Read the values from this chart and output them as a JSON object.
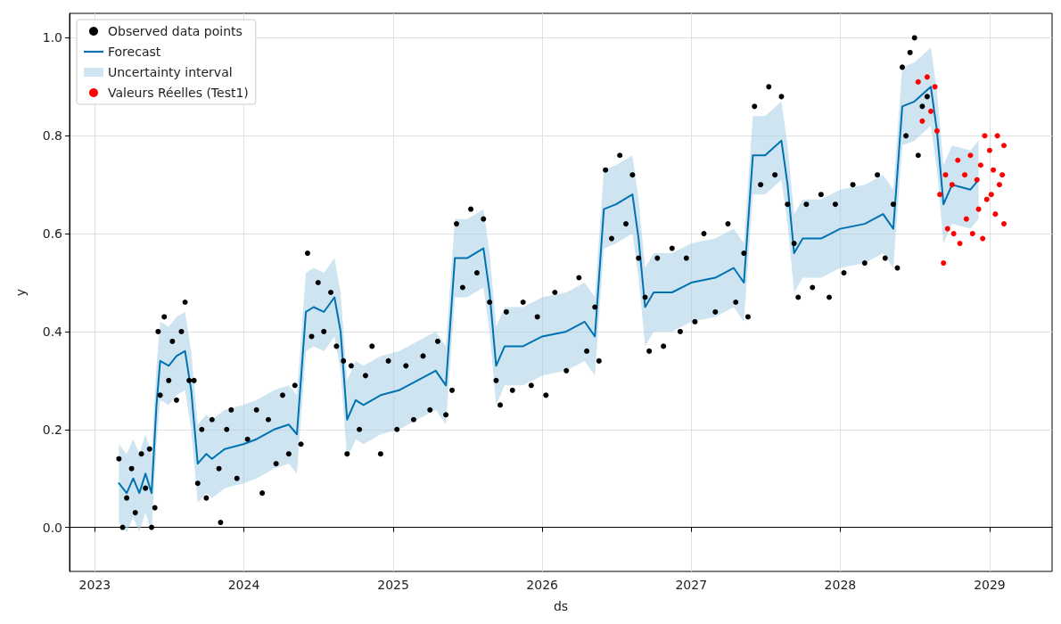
{
  "chart_data": {
    "type": "scatter",
    "xlabel": "ds",
    "ylabel": "y",
    "xlim": [
      "2022-10-31",
      "2029-06-03"
    ],
    "ylim": [
      -0.09,
      1.05
    ],
    "xticks": [
      "2023",
      "2024",
      "2025",
      "2026",
      "2027",
      "2028",
      "2029"
    ],
    "yticks": [
      {
        "value": 0,
        "label": "0.0"
      },
      {
        "value": 0.2,
        "label": "0.2"
      },
      {
        "value": 0.4,
        "label": "0.4"
      },
      {
        "value": 0.6,
        "label": "0.6"
      },
      {
        "value": 0.8,
        "label": "0.8"
      },
      {
        "value": 1,
        "label": "1.0"
      }
    ],
    "grid": true,
    "legend": "top left",
    "marker": "circle",
    "series": [
      {
        "name": "Observed data points",
        "type": "scatter",
        "color": "#000000",
        "x": [
          "2023-03-01",
          "2023-03-10",
          "2023-03-20",
          "2023-04-01",
          "2023-04-10",
          "2023-04-25",
          "2023-05-05",
          "2023-05-15",
          "2023-05-20",
          "2023-05-28",
          "2023-06-05",
          "2023-06-10",
          "2023-06-20",
          "2023-07-01",
          "2023-07-10",
          "2023-07-20",
          "2023-08-01",
          "2023-08-10",
          "2023-08-20",
          "2023-09-01",
          "2023-09-10",
          "2023-09-20",
          "2023-10-01",
          "2023-10-15",
          "2023-11-01",
          "2023-11-05",
          "2023-11-20",
          "2023-12-01",
          "2023-12-15",
          "2024-01-10",
          "2024-02-01",
          "2024-02-15",
          "2024-03-01",
          "2024-03-20",
          "2024-04-05",
          "2024-04-20",
          "2024-05-05",
          "2024-05-20",
          "2024-06-05",
          "2024-06-15",
          "2024-07-01",
          "2024-07-15",
          "2024-08-01",
          "2024-08-15",
          "2024-09-01",
          "2024-09-10",
          "2024-09-20",
          "2024-10-10",
          "2024-10-25",
          "2024-11-10",
          "2024-12-01",
          "2024-12-20",
          "2025-01-10",
          "2025-02-01",
          "2025-02-20",
          "2025-03-15",
          "2025-04-01",
          "2025-04-20",
          "2025-05-10",
          "2025-05-25",
          "2025-06-05",
          "2025-06-20",
          "2025-07-10",
          "2025-07-25",
          "2025-08-10",
          "2025-08-25",
          "2025-09-10",
          "2025-09-20",
          "2025-10-05",
          "2025-10-20",
          "2025-11-15",
          "2025-12-05",
          "2025-12-20",
          "2026-01-10",
          "2026-02-01",
          "2026-03-01",
          "2026-04-01",
          "2026-04-20",
          "2026-05-10",
          "2026-05-20",
          "2026-06-05",
          "2026-06-20",
          "2026-07-10",
          "2026-07-25",
          "2026-08-10",
          "2026-08-25",
          "2026-09-10",
          "2026-09-20",
          "2026-10-10",
          "2026-10-25",
          "2026-11-15",
          "2026-12-05",
          "2026-12-20",
          "2027-01-10",
          "2027-02-01",
          "2027-03-01",
          "2027-04-01",
          "2027-04-20",
          "2027-05-10",
          "2027-05-20",
          "2027-06-05",
          "2027-06-20",
          "2027-07-10",
          "2027-07-25",
          "2027-08-10",
          "2027-08-25",
          "2027-09-10",
          "2027-09-20",
          "2027-10-10",
          "2027-10-25",
          "2027-11-15",
          "2027-12-05",
          "2027-12-20",
          "2028-01-10",
          "2028-02-01",
          "2028-03-01",
          "2028-04-01",
          "2028-04-20",
          "2028-05-10",
          "2028-05-20",
          "2028-06-01",
          "2028-06-10",
          "2028-06-20",
          "2028-07-01",
          "2028-07-10",
          "2028-07-20",
          "2028-08-01"
        ],
        "values": [
          0.14,
          0.0,
          0.06,
          0.12,
          0.03,
          0.15,
          0.08,
          0.16,
          0.0,
          0.04,
          0.4,
          0.27,
          0.43,
          0.3,
          0.38,
          0.26,
          0.4,
          0.46,
          0.3,
          0.3,
          0.09,
          0.2,
          0.06,
          0.22,
          0.12,
          0.01,
          0.2,
          0.24,
          0.1,
          0.18,
          0.24,
          0.07,
          0.22,
          0.13,
          0.27,
          0.15,
          0.29,
          0.17,
          0.56,
          0.39,
          0.5,
          0.4,
          0.48,
          0.37,
          0.34,
          0.15,
          0.33,
          0.2,
          0.31,
          0.37,
          0.15,
          0.34,
          0.2,
          0.33,
          0.22,
          0.35,
          0.24,
          0.38,
          0.23,
          0.28,
          0.62,
          0.49,
          0.65,
          0.52,
          0.63,
          0.46,
          0.3,
          0.25,
          0.44,
          0.28,
          0.46,
          0.29,
          0.43,
          0.27,
          0.48,
          0.32,
          0.51,
          0.36,
          0.45,
          0.34,
          0.73,
          0.59,
          0.76,
          0.62,
          0.72,
          0.55,
          0.47,
          0.36,
          0.55,
          0.37,
          0.57,
          0.4,
          0.55,
          0.42,
          0.6,
          0.44,
          0.62,
          0.46,
          0.56,
          0.43,
          0.86,
          0.7,
          0.9,
          0.72,
          0.88,
          0.66,
          0.58,
          0.47,
          0.66,
          0.49,
          0.68,
          0.47,
          0.66,
          0.52,
          0.7,
          0.54,
          0.72,
          0.55,
          0.66,
          0.53,
          0.94,
          0.8,
          0.97,
          1.0,
          0.76,
          0.86,
          0.88
        ]
      },
      {
        "name": "Forecast",
        "type": "line",
        "color": "#0072b2",
        "marker": "none",
        "x": [
          "2023-03-01",
          "2023-03-20",
          "2023-04-05",
          "2023-04-20",
          "2023-05-05",
          "2023-05-20",
          "2023-06-01",
          "2023-06-10",
          "2023-07-01",
          "2023-07-20",
          "2023-08-10",
          "2023-08-25",
          "2023-09-10",
          "2023-10-01",
          "2023-10-15",
          "2023-11-15",
          "2023-12-31",
          "2024-02-01",
          "2024-03-15",
          "2024-04-20",
          "2024-05-10",
          "2024-06-01",
          "2024-06-20",
          "2024-07-15",
          "2024-08-10",
          "2024-08-25",
          "2024-09-10",
          "2024-10-01",
          "2024-10-20",
          "2024-12-01",
          "2025-01-15",
          "2025-03-01",
          "2025-04-15",
          "2025-05-10",
          "2025-06-01",
          "2025-07-01",
          "2025-08-10",
          "2025-08-25",
          "2025-09-10",
          "2025-10-01",
          "2025-11-15",
          "2026-01-01",
          "2026-03-01",
          "2026-04-15",
          "2026-05-10",
          "2026-06-01",
          "2026-07-01",
          "2026-08-10",
          "2026-08-25",
          "2026-09-10",
          "2026-10-01",
          "2026-11-15",
          "2027-01-01",
          "2027-03-01",
          "2027-04-15",
          "2027-05-10",
          "2027-06-01",
          "2027-07-01",
          "2027-08-10",
          "2027-08-25",
          "2027-09-10",
          "2027-10-01",
          "2027-11-15",
          "2028-01-01",
          "2028-03-01",
          "2028-04-15",
          "2028-05-10",
          "2028-06-01",
          "2028-07-01",
          "2028-08-10",
          "2028-08-25",
          "2028-09-10",
          "2028-10-01",
          "2028-11-15",
          "2028-12-05"
        ],
        "values": [
          0.09,
          0.07,
          0.1,
          0.07,
          0.11,
          0.07,
          0.25,
          0.34,
          0.33,
          0.35,
          0.36,
          0.28,
          0.13,
          0.15,
          0.14,
          0.16,
          0.17,
          0.18,
          0.2,
          0.21,
          0.19,
          0.44,
          0.45,
          0.44,
          0.47,
          0.4,
          0.22,
          0.26,
          0.25,
          0.27,
          0.28,
          0.3,
          0.32,
          0.29,
          0.55,
          0.55,
          0.57,
          0.48,
          0.33,
          0.37,
          0.37,
          0.39,
          0.4,
          0.42,
          0.39,
          0.65,
          0.66,
          0.68,
          0.59,
          0.45,
          0.48,
          0.48,
          0.5,
          0.51,
          0.53,
          0.5,
          0.76,
          0.76,
          0.79,
          0.7,
          0.56,
          0.59,
          0.59,
          0.61,
          0.62,
          0.64,
          0.61,
          0.86,
          0.87,
          0.9,
          0.81,
          0.66,
          0.7,
          0.69,
          0.71
        ],
        "lower": [
          0.01,
          -0.01,
          0.02,
          -0.01,
          0.03,
          -0.01,
          0.17,
          0.26,
          0.25,
          0.27,
          0.28,
          0.2,
          0.05,
          0.07,
          0.06,
          0.08,
          0.09,
          0.1,
          0.12,
          0.13,
          0.11,
          0.36,
          0.37,
          0.36,
          0.39,
          0.32,
          0.14,
          0.18,
          0.17,
          0.19,
          0.2,
          0.22,
          0.24,
          0.21,
          0.47,
          0.47,
          0.49,
          0.4,
          0.25,
          0.29,
          0.29,
          0.31,
          0.32,
          0.34,
          0.31,
          0.57,
          0.58,
          0.6,
          0.51,
          0.37,
          0.4,
          0.4,
          0.42,
          0.43,
          0.45,
          0.42,
          0.68,
          0.68,
          0.71,
          0.62,
          0.48,
          0.51,
          0.51,
          0.53,
          0.54,
          0.56,
          0.53,
          0.78,
          0.79,
          0.82,
          0.73,
          0.58,
          0.62,
          0.61,
          0.63
        ],
        "upper": [
          0.17,
          0.15,
          0.18,
          0.15,
          0.19,
          0.15,
          0.33,
          0.42,
          0.41,
          0.43,
          0.44,
          0.36,
          0.21,
          0.23,
          0.22,
          0.24,
          0.25,
          0.26,
          0.28,
          0.29,
          0.27,
          0.52,
          0.53,
          0.52,
          0.55,
          0.48,
          0.3,
          0.34,
          0.33,
          0.35,
          0.36,
          0.38,
          0.4,
          0.37,
          0.63,
          0.63,
          0.65,
          0.56,
          0.41,
          0.45,
          0.45,
          0.47,
          0.48,
          0.5,
          0.47,
          0.73,
          0.74,
          0.76,
          0.67,
          0.53,
          0.56,
          0.56,
          0.58,
          0.59,
          0.61,
          0.58,
          0.84,
          0.84,
          0.87,
          0.78,
          0.64,
          0.67,
          0.67,
          0.69,
          0.7,
          0.72,
          0.69,
          0.94,
          0.95,
          0.98,
          0.89,
          0.74,
          0.78,
          0.77,
          0.79
        ]
      },
      {
        "name": "Uncertainty interval",
        "type": "area",
        "color": "#a6cee3",
        "marker": "none"
      },
      {
        "name": "Valeurs Réelles (Test1)",
        "type": "scatter",
        "color": "#ff0000",
        "x": [
          "2028-07-10",
          "2028-07-20",
          "2028-08-01",
          "2028-08-10",
          "2028-08-20",
          "2028-08-25",
          "2028-09-01",
          "2028-09-10",
          "2028-09-15",
          "2028-09-20",
          "2028-10-01",
          "2028-10-05",
          "2028-10-15",
          "2028-10-20",
          "2028-11-01",
          "2028-11-05",
          "2028-11-15",
          "2028-11-20",
          "2028-12-01",
          "2028-12-05",
          "2028-12-10",
          "2028-12-15",
          "2028-12-20",
          "2028-12-25",
          "2029-01-01",
          "2029-01-05",
          "2029-01-10",
          "2029-01-15",
          "2029-01-20",
          "2029-01-25",
          "2029-02-01",
          "2029-02-05",
          "2029-02-05"
        ],
        "values": [
          0.91,
          0.83,
          0.92,
          0.85,
          0.9,
          0.81,
          0.68,
          0.54,
          0.72,
          0.61,
          0.7,
          0.6,
          0.75,
          0.58,
          0.72,
          0.63,
          0.76,
          0.6,
          0.71,
          0.65,
          0.74,
          0.59,
          0.8,
          0.67,
          0.77,
          0.68,
          0.73,
          0.64,
          0.8,
          0.7,
          0.72,
          0.62,
          0.78
        ]
      }
    ]
  }
}
